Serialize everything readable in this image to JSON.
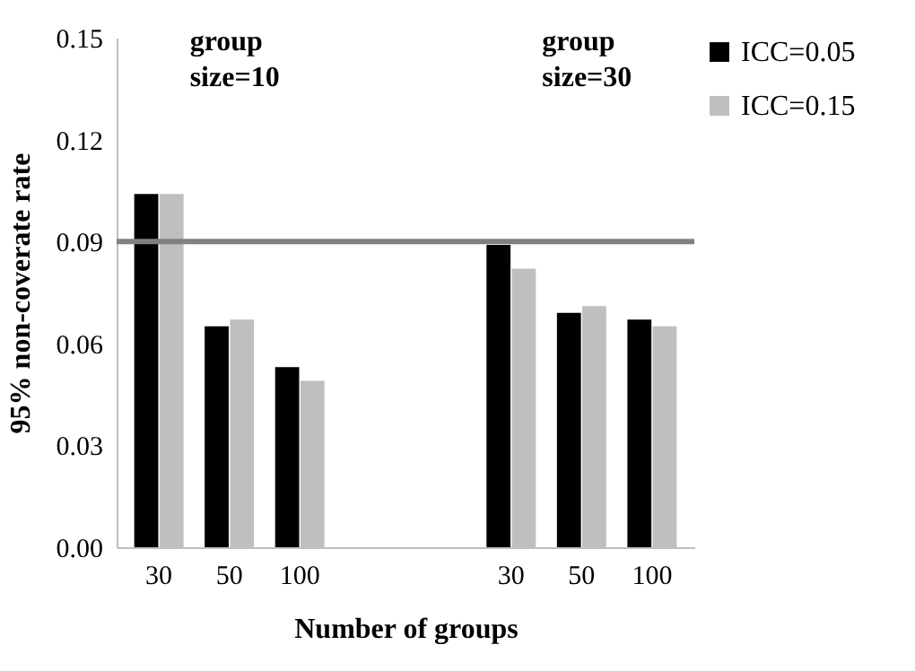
{
  "chart_data": {
    "type": "bar",
    "xlabel": "Number of groups",
    "ylabel": "95% non-coverate rate",
    "categories": [
      "30",
      "50",
      "100",
      null,
      null,
      "30",
      "50",
      "100"
    ],
    "series": [
      {
        "name": "ICC=0.05",
        "color": "#000000",
        "values": [
          0.104,
          0.065,
          0.053,
          null,
          null,
          0.089,
          0.069,
          0.067
        ]
      },
      {
        "name": "ICC=0.15",
        "color": "#bfbfbf",
        "values": [
          0.104,
          0.067,
          0.049,
          null,
          null,
          0.082,
          0.071,
          0.065
        ]
      }
    ],
    "ylim": [
      0,
      0.15
    ],
    "yticks": [
      {
        "value": 0,
        "label": "0.00"
      },
      {
        "value": 0.03,
        "label": "0.03"
      },
      {
        "value": 0.06,
        "label": "0.06"
      },
      {
        "value": 0.09,
        "label": "0.09"
      },
      {
        "value": 0.12,
        "label": "0.12"
      },
      {
        "value": 0.15,
        "label": "0.15"
      }
    ],
    "ref_lines": [
      {
        "axis": "y",
        "value": 0.09,
        "color": "#808080"
      }
    ],
    "annotations": [
      "group size=10",
      "group size=30"
    ],
    "legend": "right",
    "grid": false
  }
}
